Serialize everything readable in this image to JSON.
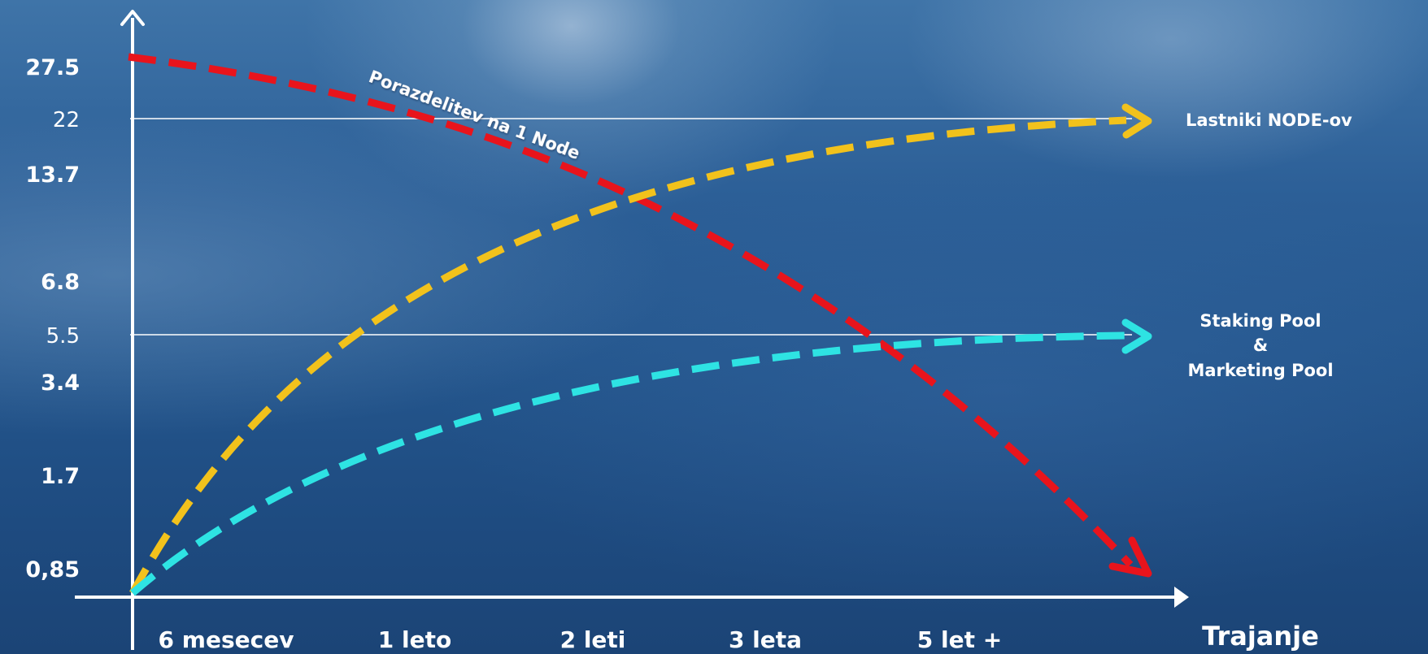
{
  "chart_data": {
    "type": "line",
    "x_title": "Trajanje",
    "categories": [
      "6 mesecev",
      "1 leto",
      "2 leti",
      "3 leta",
      "5 let +"
    ],
    "y_ticks": [
      {
        "label": "27.5",
        "value": 27.5,
        "bold": true
      },
      {
        "label": "22",
        "value": 22,
        "bold": false
      },
      {
        "label": "13.7",
        "value": 13.7,
        "bold": true
      },
      {
        "label": "6.8",
        "value": 6.8,
        "bold": true
      },
      {
        "label": "5.5",
        "value": 5.5,
        "bold": false
      },
      {
        "label": "3.4",
        "value": 3.4,
        "bold": true
      },
      {
        "label": "1.7",
        "value": 1.7,
        "bold": true
      },
      {
        "label": "0,85",
        "value": 0.85,
        "bold": true
      }
    ],
    "reference_lines": [
      22,
      5.5
    ],
    "series": [
      {
        "name": "Porazdelitev na 1 Node",
        "color": "#e8141c",
        "trend": "decreasing",
        "start_value": 27.5,
        "end_value": "below 0,85"
      },
      {
        "name": "Lastniki NODE-ov",
        "color": "#f2c21c",
        "trend": "increasing",
        "start_value": 0.85,
        "end_value": 22
      },
      {
        "name_lines": [
          "Staking Pool",
          "&",
          "Marketing Pool"
        ],
        "color": "#2ee3e3",
        "trend": "increasing",
        "start_value": 0.85,
        "end_value": 5.5
      }
    ]
  }
}
